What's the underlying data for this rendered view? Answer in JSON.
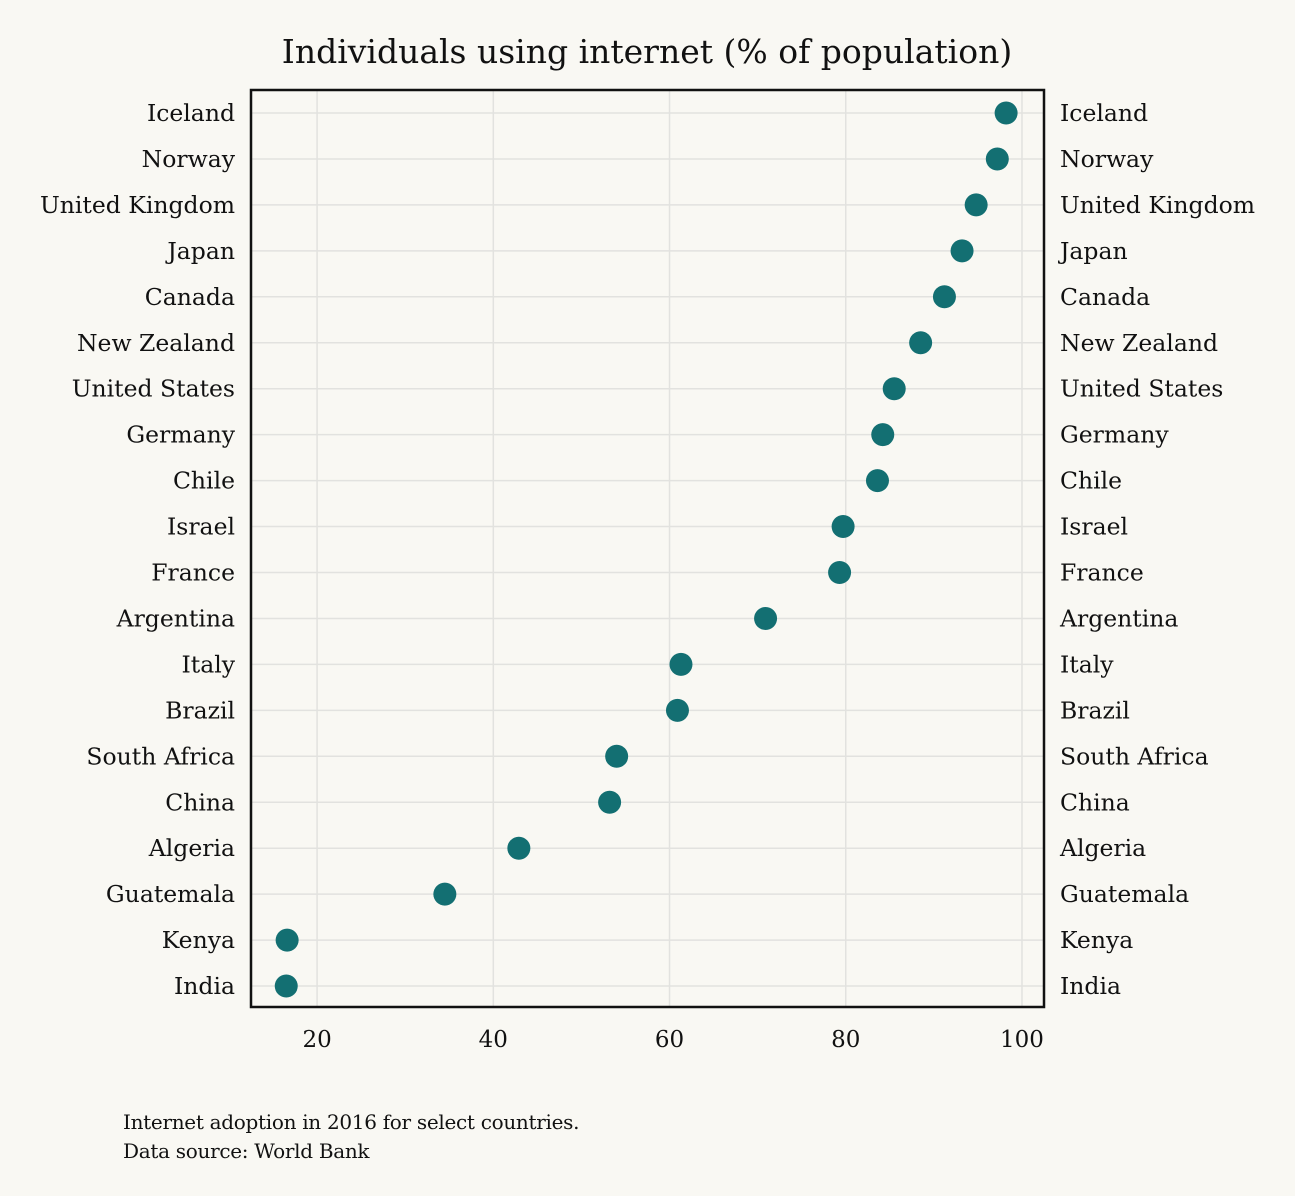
{
  "chart_data": {
    "type": "scatter",
    "title": "Individuals using internet (% of population)",
    "xlabel": "",
    "ylabel": "",
    "xlim": [
      12.5,
      102.5
    ],
    "x_ticks": [
      20,
      40,
      60,
      80,
      100
    ],
    "grid": true,
    "legend": "none",
    "point_color": "#136f72",
    "categories": [
      "Iceland",
      "Norway",
      "United Kingdom",
      "Japan",
      "Canada",
      "New Zealand",
      "United States",
      "Germany",
      "Chile",
      "Israel",
      "France",
      "Argentina",
      "Italy",
      "Brazil",
      "South Africa",
      "China",
      "Algeria",
      "Guatemala",
      "Kenya",
      "India"
    ],
    "values": [
      98.2,
      97.2,
      94.8,
      93.2,
      91.2,
      88.5,
      85.5,
      84.2,
      83.6,
      79.7,
      79.3,
      70.9,
      61.3,
      60.9,
      54.0,
      53.2,
      42.9,
      34.5,
      16.6,
      16.5
    ]
  },
  "caption": {
    "line1": "Internet adoption in 2016 for select countries.",
    "line2": "Data source: World Bank"
  }
}
